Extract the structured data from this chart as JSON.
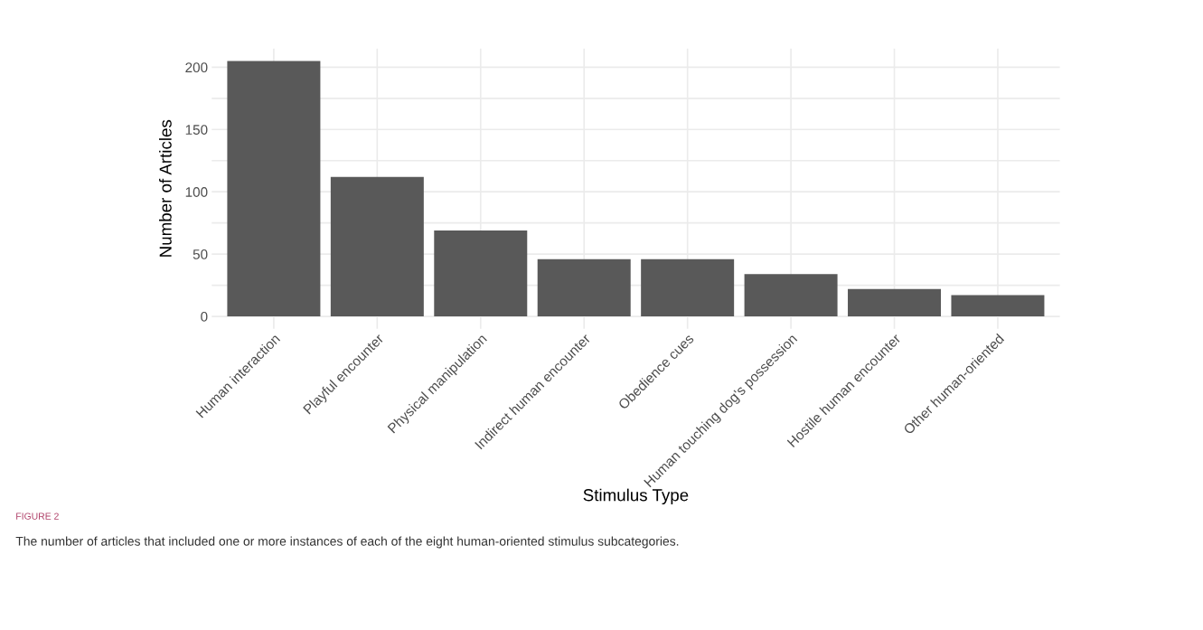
{
  "chart_data": {
    "type": "bar",
    "xlabel": "Stimulus Type",
    "ylabel": "Number of Articles",
    "categories": [
      "Human interaction",
      "Playful encounter",
      "Physical manipulation",
      "Indirect human encounter",
      "Obedience cues",
      "Human touching dog's possession",
      "Hostile human encounter",
      "Other human-oriented"
    ],
    "values": [
      205,
      112,
      69,
      46,
      46,
      34,
      22,
      17
    ],
    "color": "#595959",
    "ylim": [
      -10,
      215
    ],
    "yticks": [
      0,
      {
        "value": 25,
        "label": null
      },
      50,
      {
        "value": 75,
        "label": null
      },
      100,
      {
        "value": 125,
        "label": null
      },
      150,
      {
        "value": 175,
        "label": null
      },
      200
    ],
    "grid": true,
    "annotations": [
      "FIGURE 2",
      "The number of articles that included one or more instances of each of the eight human-oriented stimulus subcategories."
    ]
  }
}
